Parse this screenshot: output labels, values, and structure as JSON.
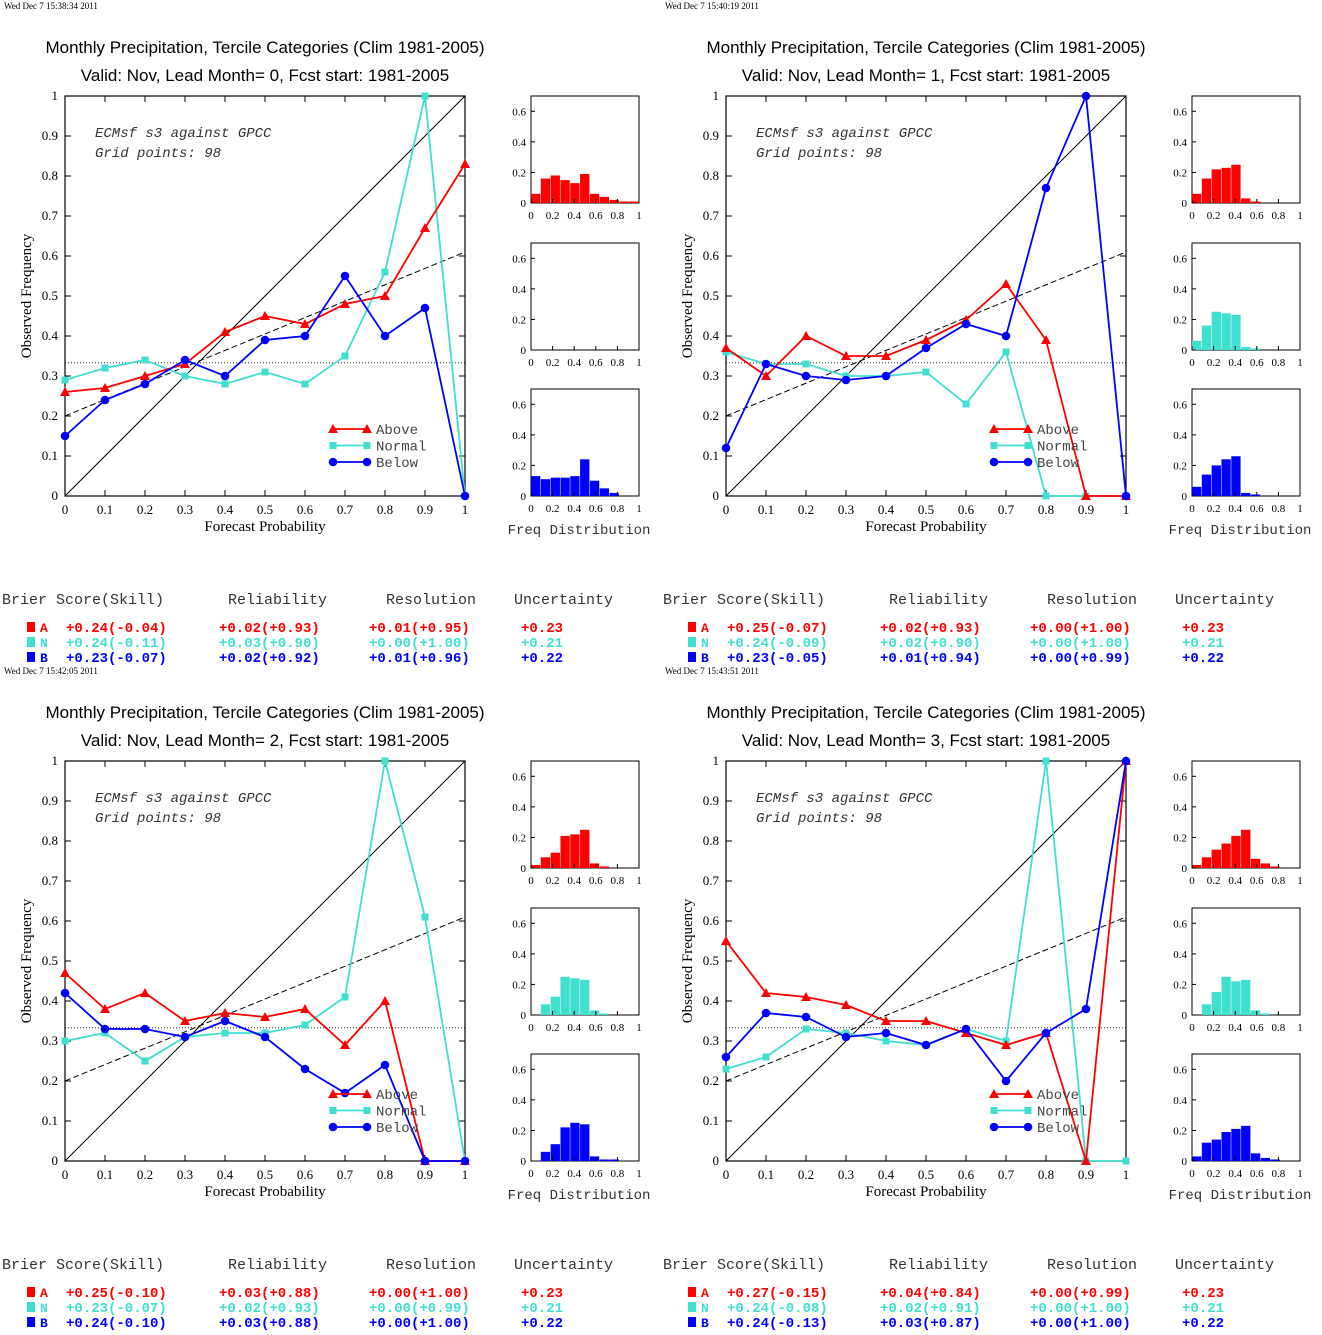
{
  "colors": {
    "above": "#ff0000",
    "normal": "#40e0d0",
    "below": "#0000ff",
    "axis": "#000000"
  },
  "common": {
    "title": "Monthly Precipitation, Tercile Categories (Clim 1981-2005)",
    "annot_line1": "ECMsf s3 against GPCC",
    "annot_line2": "Grid points:    98",
    "xlabel": "Forecast Probability",
    "ylabel": "Observed Frequency",
    "hist_label": "Freq Distribution",
    "legend": [
      "Above",
      "Normal",
      "Below"
    ],
    "table_headers": [
      "Brier Score(Skill)",
      "Reliability",
      "Resolution",
      "Uncertainty"
    ],
    "row_letters": [
      "A",
      "N",
      "B"
    ],
    "x_ticks": [
      "0",
      "0.1",
      "0.2",
      "0.3",
      "0.4",
      "0.5",
      "0.6",
      "0.7",
      "0.8",
      "0.9",
      "1"
    ],
    "y_ticks": [
      "0",
      "0.1",
      "0.2",
      "0.3",
      "0.4",
      "0.5",
      "0.6",
      "0.7",
      "0.8",
      "0.9",
      "1"
    ],
    "hist_x_ticks": [
      "0",
      "0.2",
      "0.4",
      "0.6",
      "0.8",
      "1"
    ],
    "hist_y_ticks": [
      "0",
      "0.2",
      "0.4",
      "0.6"
    ],
    "xlim": [
      0,
      1
    ],
    "ylim": [
      0,
      1
    ],
    "hist_ylim": [
      0,
      0.7
    ],
    "climatology_line": 0.333
  },
  "chart_data": [
    {
      "type": "line",
      "timestamp": "Wed Dec  7 15:38:34 2011",
      "subtitle": "Valid: Nov, Lead Month= 0, Fcst start: 1981-2005",
      "x": [
        0,
        0.1,
        0.2,
        0.3,
        0.4,
        0.5,
        0.6,
        0.7,
        0.8,
        0.9,
        1.0
      ],
      "series": [
        {
          "name": "Above",
          "values": [
            0.26,
            0.27,
            0.3,
            0.33,
            0.41,
            0.45,
            0.43,
            0.48,
            0.5,
            0.67,
            0.83
          ]
        },
        {
          "name": "Normal",
          "values": [
            0.29,
            0.32,
            0.34,
            0.3,
            0.28,
            0.31,
            0.28,
            0.35,
            0.56,
            1.0,
            0.0
          ]
        },
        {
          "name": "Below",
          "values": [
            0.15,
            0.24,
            0.28,
            0.34,
            0.3,
            0.39,
            0.4,
            0.55,
            0.4,
            0.47,
            0.0
          ]
        }
      ],
      "dashed_line": [
        0.2,
        0.61
      ],
      "hist": {
        "Above": [
          0.06,
          0.16,
          0.18,
          0.15,
          0.13,
          0.19,
          0.06,
          0.04,
          0.02,
          0.01,
          0.01
        ],
        "Normal": [
          0,
          0,
          0,
          0,
          0,
          0,
          0,
          0,
          0,
          0,
          0
        ],
        "Below": [
          0.13,
          0.11,
          0.12,
          0.12,
          0.13,
          0.24,
          0.1,
          0.05,
          0.02,
          0.0,
          0.0
        ]
      },
      "table": [
        [
          "+0.24(-0.04)",
          "+0.02(+0.93)",
          "+0.01(+0.95)",
          "+0.23"
        ],
        [
          "+0.24(-0.11)",
          "+0.03(+0.90)",
          "+0.00(+1.00)",
          "+0.21"
        ],
        [
          "+0.23(-0.07)",
          "+0.02(+0.92)",
          "+0.01(+0.96)",
          "+0.22"
        ]
      ]
    },
    {
      "type": "line",
      "timestamp": "Wed Dec  7 15:40:19 2011",
      "subtitle": "Valid: Nov, Lead Month= 1, Fcst start: 1981-2005",
      "x": [
        0,
        0.1,
        0.2,
        0.3,
        0.4,
        0.5,
        0.6,
        0.7,
        0.8,
        0.9,
        1.0
      ],
      "series": [
        {
          "name": "Above",
          "values": [
            0.37,
            0.3,
            0.4,
            0.35,
            0.35,
            0.39,
            0.44,
            0.53,
            0.39,
            0.0,
            0.0
          ]
        },
        {
          "name": "Normal",
          "values": [
            0.36,
            0.33,
            0.33,
            0.3,
            0.3,
            0.31,
            0.23,
            0.36,
            0.0,
            0.0,
            0.0
          ]
        },
        {
          "name": "Below",
          "values": [
            0.12,
            0.33,
            0.3,
            0.29,
            0.3,
            0.37,
            0.43,
            0.4,
            0.77,
            1.0,
            0.0
          ]
        }
      ],
      "dashed_line": [
        0.2,
        0.61
      ],
      "hist": {
        "Above": [
          0.06,
          0.16,
          0.22,
          0.23,
          0.25,
          0.03,
          0.01,
          0.0,
          0.0,
          0.0,
          0.0
        ],
        "Normal": [
          0.06,
          0.16,
          0.25,
          0.24,
          0.23,
          0.02,
          0.01,
          0.0,
          0.0,
          0.0,
          0.0
        ],
        "Below": [
          0.06,
          0.14,
          0.2,
          0.24,
          0.26,
          0.02,
          0.01,
          0.0,
          0.0,
          0.0,
          0.0
        ]
      },
      "table": [
        [
          "+0.25(-0.07)",
          "+0.02(+0.93)",
          "+0.00(+1.00)",
          "+0.23"
        ],
        [
          "+0.24(-0.09)",
          "+0.02(+0.90)",
          "+0.00(+1.00)",
          "+0.21"
        ],
        [
          "+0.23(-0.05)",
          "+0.01(+0.94)",
          "+0.00(+0.99)",
          "+0.22"
        ]
      ]
    },
    {
      "type": "line",
      "timestamp": "Wed Dec  7 15:42:05 2011",
      "subtitle": "Valid: Nov, Lead Month= 2, Fcst start: 1981-2005",
      "x": [
        0,
        0.1,
        0.2,
        0.3,
        0.4,
        0.5,
        0.6,
        0.7,
        0.8,
        0.9,
        1.0
      ],
      "series": [
        {
          "name": "Above",
          "values": [
            0.47,
            0.38,
            0.42,
            0.35,
            0.37,
            0.36,
            0.38,
            0.29,
            0.4,
            0.0,
            0.0
          ]
        },
        {
          "name": "Normal",
          "values": [
            0.3,
            0.32,
            0.25,
            0.31,
            0.32,
            0.32,
            0.34,
            0.41,
            1.0,
            0.61,
            0.0
          ]
        },
        {
          "name": "Below",
          "values": [
            0.42,
            0.33,
            0.33,
            0.31,
            0.35,
            0.31,
            0.23,
            0.17,
            0.24,
            0.0,
            0.0
          ]
        }
      ],
      "dashed_line": [
        0.2,
        0.61
      ],
      "hist": {
        "Above": [
          0.02,
          0.07,
          0.1,
          0.21,
          0.22,
          0.25,
          0.03,
          0.01,
          0.0,
          0.0,
          0.0
        ],
        "Normal": [
          0.0,
          0.07,
          0.12,
          0.25,
          0.24,
          0.23,
          0.03,
          0.01,
          0.0,
          0.0,
          0.0
        ],
        "Below": [
          0.0,
          0.06,
          0.11,
          0.22,
          0.25,
          0.24,
          0.03,
          0.01,
          0.01,
          0.0,
          0.0
        ]
      },
      "table": [
        [
          "+0.25(-0.10)",
          "+0.03(+0.88)",
          "+0.00(+1.00)",
          "+0.23"
        ],
        [
          "+0.23(-0.07)",
          "+0.02(+0.93)",
          "+0.00(+0.99)",
          "+0.21"
        ],
        [
          "+0.24(-0.10)",
          "+0.03(+0.88)",
          "+0.00(+1.00)",
          "+0.22"
        ]
      ]
    },
    {
      "type": "line",
      "timestamp": "Wed Dec  7 15:43:51 2011",
      "subtitle": "Valid: Nov, Lead Month= 3, Fcst start: 1981-2005",
      "x": [
        0,
        0.1,
        0.2,
        0.3,
        0.4,
        0.5,
        0.6,
        0.7,
        0.8,
        0.9,
        1.0
      ],
      "series": [
        {
          "name": "Above",
          "values": [
            0.55,
            0.42,
            0.41,
            0.39,
            0.35,
            0.35,
            0.32,
            0.29,
            0.32,
            0.0,
            1.0
          ]
        },
        {
          "name": "Normal",
          "values": [
            0.23,
            0.26,
            0.33,
            0.32,
            0.3,
            0.29,
            0.33,
            0.3,
            1.0,
            0.0,
            0.0
          ]
        },
        {
          "name": "Below",
          "values": [
            0.26,
            0.37,
            0.36,
            0.31,
            0.32,
            0.29,
            0.33,
            0.2,
            0.32,
            0.38,
            1.0
          ]
        }
      ],
      "dashed_line": [
        0.2,
        0.61
      ],
      "hist": {
        "Above": [
          0.02,
          0.07,
          0.12,
          0.16,
          0.21,
          0.25,
          0.06,
          0.03,
          0.01,
          0.0,
          0.0
        ],
        "Normal": [
          0.0,
          0.07,
          0.15,
          0.25,
          0.22,
          0.23,
          0.03,
          0.01,
          0.0,
          0.0,
          0.0
        ],
        "Below": [
          0.03,
          0.12,
          0.14,
          0.19,
          0.21,
          0.23,
          0.05,
          0.02,
          0.01,
          0.0,
          0.0
        ]
      },
      "table": [
        [
          "+0.27(-0.15)",
          "+0.04(+0.84)",
          "+0.00(+0.99)",
          "+0.23"
        ],
        [
          "+0.24(-0.08)",
          "+0.02(+0.91)",
          "+0.00(+1.00)",
          "+0.21"
        ],
        [
          "+0.24(-0.13)",
          "+0.03(+0.87)",
          "+0.00(+1.00)",
          "+0.22"
        ]
      ]
    }
  ]
}
